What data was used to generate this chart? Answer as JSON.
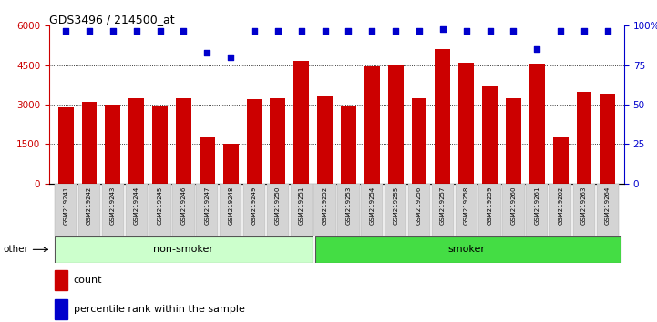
{
  "title": "GDS3496 / 214500_at",
  "samples": [
    "GSM219241",
    "GSM219242",
    "GSM219243",
    "GSM219244",
    "GSM219245",
    "GSM219246",
    "GSM219247",
    "GSM219248",
    "GSM219249",
    "GSM219250",
    "GSM219251",
    "GSM219252",
    "GSM219253",
    "GSM219254",
    "GSM219255",
    "GSM219256",
    "GSM219257",
    "GSM219258",
    "GSM219259",
    "GSM219260",
    "GSM219261",
    "GSM219262",
    "GSM219263",
    "GSM219264"
  ],
  "counts_final": [
    2900,
    3100,
    3000,
    3250,
    2950,
    3250,
    1750,
    1500,
    3200,
    3250,
    4650,
    3350,
    2950,
    4450,
    4500,
    3250,
    5100,
    4600,
    3700,
    3250,
    4550,
    1750,
    3500,
    3400
  ],
  "percentile_ranks": [
    97,
    97,
    97,
    97,
    97,
    97,
    83,
    80,
    97,
    97,
    97,
    97,
    97,
    97,
    97,
    97,
    98,
    97,
    97,
    97,
    85,
    97,
    97,
    97
  ],
  "non_smoker_count": 11,
  "smoker_count": 13,
  "bar_color": "#cc0000",
  "dot_color": "#0000cc",
  "ylim_left": [
    0,
    6000
  ],
  "ylim_right": [
    0,
    100
  ],
  "yticks_left": [
    0,
    1500,
    3000,
    4500,
    6000
  ],
  "yticks_right": [
    0,
    25,
    50,
    75,
    100
  ],
  "non_smoker_label": "non-smoker",
  "smoker_label": "smoker",
  "other_label": "other",
  "non_smoker_bg": "#ccffcc",
  "smoker_bg": "#44dd44"
}
